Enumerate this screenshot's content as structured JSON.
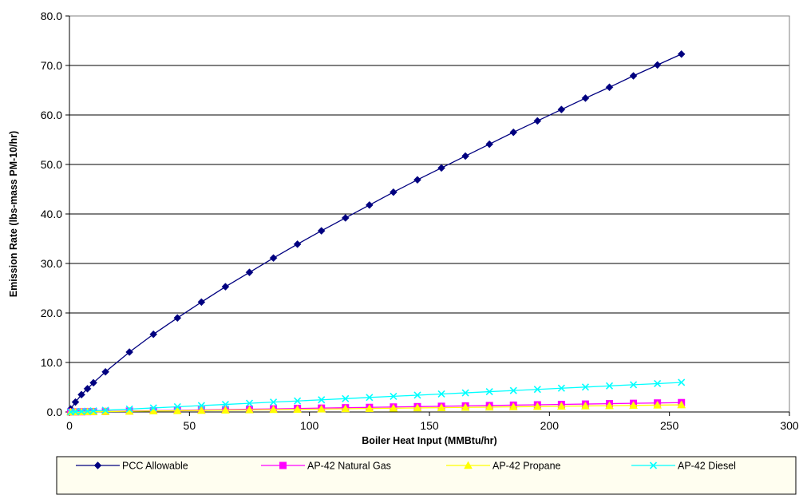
{
  "chart_data": {
    "type": "line",
    "title": "",
    "xlabel": "Boiler Heat Input (MMBtu/hr)",
    "ylabel": "Emission Rate (lbs-mass PM-10/hr)",
    "xlim": [
      0,
      300
    ],
    "ylim": [
      0,
      80
    ],
    "xticks": [
      "0",
      "50",
      "100",
      "150",
      "200",
      "250",
      "300"
    ],
    "yticks": [
      "0.0",
      "10.0",
      "20.0",
      "30.0",
      "40.0",
      "50.0",
      "60.0",
      "70.0",
      "80.0"
    ],
    "grid": "horizontal",
    "legend_position": "bottom",
    "x": [
      0.5,
      2.5,
      5,
      7.5,
      10,
      15,
      25,
      35,
      45,
      55,
      65,
      75,
      85,
      95,
      105,
      115,
      125,
      135,
      145,
      155,
      165,
      175,
      185,
      195,
      205,
      215,
      225,
      235,
      245,
      255
    ],
    "series": [
      {
        "name": "PCC Allowable",
        "color": "#000080",
        "marker": "diamond",
        "values": [
          0.6,
          2.0,
          3.5,
          4.7,
          5.9,
          8.1,
          12.1,
          15.7,
          19.0,
          22.2,
          25.3,
          28.2,
          31.1,
          33.9,
          36.6,
          39.2,
          41.8,
          44.4,
          46.9,
          49.3,
          51.7,
          54.1,
          56.5,
          58.8,
          61.1,
          63.4,
          65.6,
          67.9,
          70.1,
          72.3
        ]
      },
      {
        "name": "AP-42 Natural Gas",
        "color": "#ff00ff",
        "marker": "square",
        "values": [
          0.0,
          0.02,
          0.04,
          0.06,
          0.07,
          0.11,
          0.19,
          0.26,
          0.34,
          0.41,
          0.48,
          0.56,
          0.63,
          0.71,
          0.78,
          0.86,
          0.93,
          1.01,
          1.08,
          1.15,
          1.23,
          1.3,
          1.38,
          1.45,
          1.53,
          1.6,
          1.68,
          1.75,
          1.82,
          1.9
        ]
      },
      {
        "name": "AP-42 Propane",
        "color": "#ffff00",
        "marker": "triangle",
        "values": [
          0.0,
          0.01,
          0.03,
          0.04,
          0.05,
          0.08,
          0.14,
          0.2,
          0.25,
          0.31,
          0.37,
          0.42,
          0.48,
          0.53,
          0.59,
          0.65,
          0.7,
          0.76,
          0.82,
          0.87,
          0.93,
          0.98,
          1.04,
          1.1,
          1.15,
          1.21,
          1.27,
          1.32,
          1.38,
          1.44
        ]
      },
      {
        "name": "AP-42 Diesel",
        "color": "#00ffff",
        "marker": "x",
        "values": [
          0.01,
          0.06,
          0.12,
          0.18,
          0.23,
          0.35,
          0.59,
          0.82,
          1.05,
          1.29,
          1.52,
          1.76,
          1.99,
          2.22,
          2.46,
          2.69,
          2.93,
          3.16,
          3.39,
          3.63,
          3.86,
          4.1,
          4.33,
          4.56,
          4.8,
          5.03,
          5.27,
          5.5,
          5.73,
          5.97
        ]
      }
    ]
  }
}
